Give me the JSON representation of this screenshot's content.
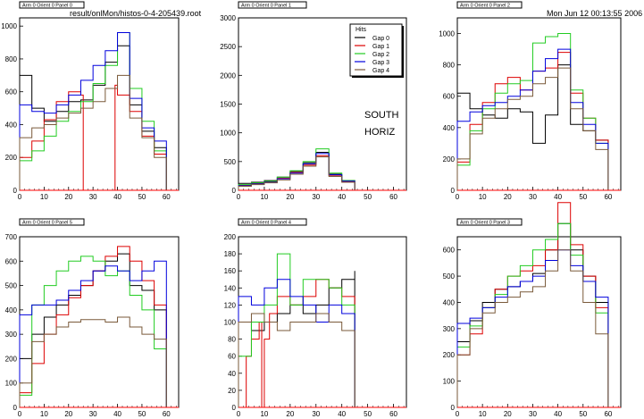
{
  "header": {
    "file_path": "result/onlMon/histos-0-4-205439.root",
    "datetime": "Mon Jun 12 00:13:55 2006"
  },
  "colors": {
    "gap0": "#000000",
    "gap1": "#dd0000",
    "gap2": "#22cc22",
    "gap3": "#0000dd",
    "gap4": "#7a5a3a",
    "zero_line": "#ff0000",
    "frame": "#000000"
  },
  "legend": {
    "title": "Hits",
    "entries": [
      "Gap 0",
      "Gap 1",
      "Gap 2",
      "Gap 3",
      "Gap 4"
    ]
  },
  "annotations": [
    "SOUTH",
    "HORIZ"
  ],
  "chart_data": [
    {
      "type": "line",
      "title": "Arm 0 Orient 0 Panel 0",
      "xlim": [
        0,
        65
      ],
      "ylim": [
        0,
        1050
      ],
      "xticks": [
        0,
        10,
        20,
        30,
        40,
        50,
        60
      ],
      "yticks": [
        0,
        200,
        400,
        600,
        800,
        1000
      ],
      "series": [
        {
          "name": "Gap 0",
          "x": [
            0,
            5,
            10,
            15,
            20,
            25,
            30,
            35,
            40,
            45,
            50,
            55,
            60
          ],
          "y": [
            700,
            500,
            420,
            480,
            540,
            550,
            640,
            780,
            880,
            520,
            360,
            260,
            0
          ]
        },
        {
          "name": "Gap 1",
          "x": [
            0,
            5,
            10,
            15,
            20,
            25,
            26,
            38,
            39,
            40,
            45,
            50,
            55,
            60
          ],
          "y": [
            200,
            300,
            430,
            540,
            600,
            580,
            0,
            0,
            640,
            580,
            480,
            330,
            220,
            0
          ]
        },
        {
          "name": "Gap 2",
          "x": [
            0,
            5,
            10,
            15,
            20,
            25,
            30,
            35,
            40,
            45,
            50,
            55,
            60
          ],
          "y": [
            180,
            240,
            330,
            420,
            480,
            540,
            650,
            760,
            960,
            620,
            420,
            240,
            0
          ]
        },
        {
          "name": "Gap 3",
          "x": [
            0,
            5,
            10,
            15,
            20,
            25,
            30,
            35,
            40,
            45,
            50,
            55,
            60
          ],
          "y": [
            520,
            480,
            470,
            520,
            580,
            670,
            760,
            850,
            960,
            560,
            380,
            300,
            0
          ]
        },
        {
          "name": "Gap 4",
          "x": [
            0,
            5,
            10,
            15,
            20,
            25,
            30,
            35,
            40,
            45,
            50,
            55,
            60
          ],
          "y": [
            320,
            380,
            400,
            440,
            470,
            500,
            540,
            620,
            700,
            440,
            320,
            200,
            0
          ]
        }
      ]
    },
    {
      "type": "line",
      "title": "Arm 0 Orient 0 Panel 1",
      "xlim": [
        0,
        65
      ],
      "ylim": [
        0,
        3000
      ],
      "xticks": [
        0,
        10,
        20,
        30,
        40,
        50,
        60
      ],
      "yticks": [
        0,
        500,
        1000,
        1500,
        2000,
        2500,
        3000
      ],
      "series": [
        {
          "name": "Gap 0",
          "x": [
            0,
            5,
            10,
            15,
            20,
            25,
            30,
            35,
            40,
            45
          ],
          "y": [
            120,
            140,
            170,
            230,
            330,
            480,
            660,
            280,
            170,
            120
          ]
        },
        {
          "name": "Gap 1",
          "x": [
            0,
            5,
            10,
            15,
            20,
            25,
            30,
            35,
            40,
            45
          ],
          "y": [
            90,
            120,
            150,
            210,
            310,
            440,
            600,
            260,
            150,
            100
          ]
        },
        {
          "name": "Gap 2",
          "x": [
            0,
            5,
            10,
            15,
            20,
            25,
            30,
            35,
            40,
            45
          ],
          "y": [
            100,
            130,
            160,
            230,
            340,
            500,
            720,
            300,
            170,
            110
          ]
        },
        {
          "name": "Gap 3",
          "x": [
            0,
            5,
            10,
            15,
            20,
            25,
            30,
            35,
            40,
            45
          ],
          "y": [
            80,
            110,
            140,
            200,
            300,
            460,
            640,
            270,
            160,
            100
          ]
        },
        {
          "name": "Gap 4",
          "x": [
            0,
            5,
            10,
            15,
            20,
            25,
            30,
            35,
            40,
            45
          ],
          "y": [
            70,
            100,
            130,
            180,
            280,
            420,
            580,
            240,
            140,
            90
          ]
        }
      ]
    },
    {
      "type": "line",
      "title": "Arm 0 Orient 0 Panel 2",
      "xlim": [
        0,
        65
      ],
      "ylim": [
        0,
        1100
      ],
      "xticks": [
        0,
        10,
        20,
        30,
        40,
        50,
        60
      ],
      "yticks": [
        0,
        200,
        400,
        600,
        800,
        1000
      ],
      "series": [
        {
          "name": "Gap 0",
          "x": [
            0,
            5,
            10,
            15,
            20,
            25,
            30,
            35,
            40,
            45,
            50,
            55,
            60
          ],
          "y": [
            620,
            520,
            480,
            460,
            520,
            500,
            300,
            480,
            800,
            420,
            380,
            320,
            0
          ]
        },
        {
          "name": "Gap 1",
          "x": [
            0,
            5,
            10,
            15,
            20,
            25,
            30,
            35,
            40,
            45,
            50,
            55,
            60
          ],
          "y": [
            180,
            420,
            560,
            680,
            720,
            640,
            760,
            780,
            880,
            620,
            460,
            320,
            0
          ]
        },
        {
          "name": "Gap 2",
          "x": [
            0,
            5,
            10,
            15,
            20,
            25,
            30,
            35,
            40,
            45,
            50,
            55,
            60
          ],
          "y": [
            160,
            380,
            520,
            620,
            680,
            700,
            940,
            980,
            1000,
            640,
            460,
            300,
            0
          ]
        },
        {
          "name": "Gap 3",
          "x": [
            0,
            5,
            10,
            15,
            20,
            25,
            30,
            35,
            40,
            45,
            50,
            55,
            60
          ],
          "y": [
            440,
            500,
            540,
            560,
            600,
            640,
            760,
            840,
            900,
            560,
            420,
            300,
            0
          ]
        },
        {
          "name": "Gap 4",
          "x": [
            0,
            5,
            10,
            15,
            20,
            25,
            30,
            35,
            40,
            45,
            50,
            55,
            60
          ],
          "y": [
            200,
            360,
            460,
            520,
            580,
            600,
            680,
            720,
            780,
            520,
            380,
            260,
            0
          ]
        }
      ]
    },
    {
      "type": "line",
      "title": "Arm 0 Orient 0 Panel 5",
      "xlim": [
        0,
        65
      ],
      "ylim": [
        0,
        700
      ],
      "xticks": [
        0,
        10,
        20,
        30,
        40,
        50,
        60
      ],
      "yticks": [
        0,
        100,
        200,
        300,
        400,
        500,
        600,
        700
      ],
      "series": [
        {
          "name": "Gap 0",
          "x": [
            0,
            5,
            10,
            15,
            20,
            25,
            30,
            35,
            40,
            45,
            50,
            55,
            60
          ],
          "y": [
            200,
            300,
            370,
            420,
            460,
            500,
            560,
            600,
            630,
            500,
            480,
            400,
            0
          ]
        },
        {
          "name": "Gap 1",
          "x": [
            0,
            5,
            10,
            15,
            20,
            25,
            30,
            35,
            40,
            45,
            50,
            55,
            60
          ],
          "y": [
            60,
            180,
            300,
            380,
            450,
            500,
            560,
            620,
            660,
            600,
            520,
            420,
            0
          ]
        },
        {
          "name": "Gap 2",
          "x": [
            0,
            5,
            10,
            15,
            20,
            25,
            30,
            35,
            40,
            45,
            50,
            55,
            60
          ],
          "y": [
            50,
            420,
            500,
            560,
            600,
            620,
            600,
            540,
            560,
            460,
            400,
            240,
            0
          ]
        },
        {
          "name": "Gap 3",
          "x": [
            0,
            5,
            10,
            15,
            20,
            25,
            30,
            35,
            40,
            45,
            50,
            55,
            60
          ],
          "y": [
            380,
            420,
            420,
            440,
            480,
            520,
            560,
            580,
            560,
            520,
            560,
            600,
            0
          ]
        },
        {
          "name": "Gap 4",
          "x": [
            0,
            5,
            10,
            15,
            20,
            25,
            30,
            35,
            40,
            45,
            50,
            55,
            60
          ],
          "y": [
            100,
            270,
            300,
            330,
            350,
            360,
            360,
            350,
            370,
            330,
            300,
            280,
            0
          ]
        }
      ]
    },
    {
      "type": "line",
      "title": "Arm 0 Orient 0 Panel 4",
      "xlim": [
        0,
        65
      ],
      "ylim": [
        0,
        200
      ],
      "xticks": [
        0,
        10,
        20,
        30,
        40,
        50,
        60
      ],
      "yticks": [
        0,
        20,
        40,
        60,
        80,
        100,
        120,
        140,
        160,
        180,
        200
      ],
      "series": [
        {
          "name": "Gap 0",
          "x": [
            0,
            5,
            10,
            15,
            20,
            25,
            30,
            35,
            40,
            45
          ],
          "y": [
            100,
            90,
            100,
            110,
            120,
            110,
            120,
            140,
            150,
            160
          ]
        },
        {
          "name": "Gap 1",
          "x": [
            0,
            3,
            5,
            8,
            9,
            10,
            12,
            15,
            20,
            25,
            30,
            35,
            40,
            45
          ],
          "y": [
            0,
            60,
            80,
            100,
            0,
            80,
            110,
            130,
            120,
            130,
            150,
            140,
            130,
            120
          ]
        },
        {
          "name": "Gap 2",
          "x": [
            0,
            5,
            10,
            15,
            20,
            25,
            30,
            35,
            40,
            45
          ],
          "y": [
            60,
            100,
            120,
            180,
            120,
            150,
            150,
            140,
            120,
            90
          ]
        },
        {
          "name": "Gap 3",
          "x": [
            0,
            5,
            10,
            15,
            20,
            25,
            30,
            35,
            40,
            45
          ],
          "y": [
            130,
            120,
            140,
            150,
            130,
            120,
            100,
            120,
            110,
            100
          ]
        },
        {
          "name": "Gap 4",
          "x": [
            0,
            5,
            10,
            15,
            20,
            25,
            30,
            35,
            40,
            45
          ],
          "y": [
            100,
            110,
            100,
            90,
            100,
            100,
            110,
            100,
            90,
            0
          ]
        }
      ]
    },
    {
      "type": "line",
      "title": "Arm 0 Orient 0 Panel 3",
      "xlim": [
        0,
        65
      ],
      "ylim": [
        0,
        650
      ],
      "xticks": [
        0,
        10,
        20,
        30,
        40,
        50,
        60
      ],
      "yticks": [
        0,
        100,
        200,
        300,
        400,
        500,
        600
      ],
      "series": [
        {
          "name": "Gap 0",
          "x": [
            0,
            5,
            10,
            15,
            20,
            25,
            30,
            35,
            40,
            45,
            50,
            55,
            60
          ],
          "y": [
            250,
            330,
            400,
            450,
            460,
            480,
            510,
            600,
            700,
            600,
            500,
            400,
            0
          ]
        },
        {
          "name": "Gap 1",
          "x": [
            0,
            5,
            10,
            15,
            20,
            25,
            30,
            35,
            40,
            45,
            50,
            55,
            60
          ],
          "y": [
            200,
            280,
            380,
            450,
            500,
            520,
            540,
            600,
            780,
            620,
            500,
            380,
            0
          ]
        },
        {
          "name": "Gap 2",
          "x": [
            0,
            5,
            10,
            15,
            20,
            25,
            30,
            35,
            40,
            45,
            50,
            55,
            60
          ],
          "y": [
            230,
            310,
            380,
            430,
            500,
            540,
            600,
            640,
            700,
            580,
            480,
            360,
            0
          ]
        },
        {
          "name": "Gap 3",
          "x": [
            0,
            5,
            10,
            15,
            20,
            25,
            30,
            35,
            40,
            45,
            50,
            55,
            60
          ],
          "y": [
            320,
            340,
            380,
            420,
            460,
            480,
            500,
            560,
            600,
            540,
            480,
            420,
            0
          ]
        },
        {
          "name": "Gap 4",
          "x": [
            0,
            5,
            10,
            15,
            20,
            25,
            30,
            35,
            40,
            45,
            50,
            55,
            60
          ],
          "y": [
            200,
            300,
            360,
            400,
            420,
            440,
            460,
            520,
            600,
            520,
            400,
            280,
            0
          ]
        }
      ]
    }
  ]
}
